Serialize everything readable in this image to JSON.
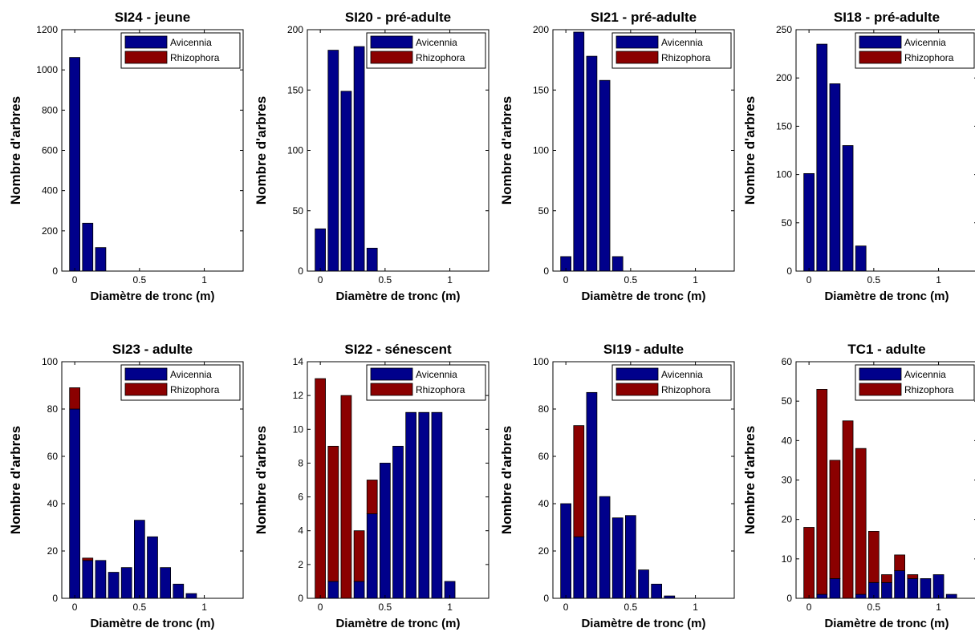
{
  "colors": {
    "avicennia": "#00008b",
    "rhizophora": "#8b0000"
  },
  "chart_data": [
    {
      "type": "bar",
      "title": "SI24 - jeune",
      "xlabel": "Diamètre de tronc (m)",
      "ylabel": "Nombre d'arbres",
      "ylim": [
        0,
        1200
      ],
      "yticks": [
        0,
        200,
        400,
        600,
        800,
        1000,
        1200
      ],
      "xlim": [
        -0.1,
        1.3
      ],
      "xticks": [
        0,
        0.5,
        1
      ],
      "xtick_labels": [
        "0",
        "0.5",
        "1"
      ],
      "x": [
        0,
        0.1,
        0.2
      ],
      "series": [
        {
          "name": "Avicennia",
          "values": [
            1062,
            238,
            117
          ]
        },
        {
          "name": "Rhizophora",
          "values": [
            0,
            0,
            0
          ]
        }
      ]
    },
    {
      "type": "bar",
      "title": "SI20 - pré-adulte",
      "xlabel": "Diamètre de tronc (m)",
      "ylabel": "Nombre d'arbres",
      "ylim": [
        0,
        200
      ],
      "yticks": [
        0,
        50,
        100,
        150,
        200
      ],
      "xlim": [
        -0.1,
        1.3
      ],
      "xticks": [
        0,
        0.5,
        1
      ],
      "xtick_labels": [
        "0",
        "0.5",
        "1"
      ],
      "x": [
        0,
        0.1,
        0.2,
        0.3,
        0.4
      ],
      "series": [
        {
          "name": "Avicennia",
          "values": [
            35,
            183,
            149,
            186,
            19
          ]
        },
        {
          "name": "Rhizophora",
          "values": [
            0,
            0,
            0,
            0,
            0
          ]
        }
      ]
    },
    {
      "type": "bar",
      "title": "SI21 - pré-adulte",
      "xlabel": "Diamètre de tronc (m)",
      "ylabel": "Nombre d'arbres",
      "ylim": [
        0,
        200
      ],
      "yticks": [
        0,
        50,
        100,
        150,
        200
      ],
      "xlim": [
        -0.1,
        1.3
      ],
      "xticks": [
        0,
        0.5,
        1
      ],
      "xtick_labels": [
        "0",
        "0.5",
        "1"
      ],
      "x": [
        0,
        0.1,
        0.2,
        0.3,
        0.4
      ],
      "series": [
        {
          "name": "Avicennia",
          "values": [
            12,
            198,
            178,
            158,
            12
          ]
        },
        {
          "name": "Rhizophora",
          "values": [
            0,
            0,
            0,
            0,
            0
          ]
        }
      ]
    },
    {
      "type": "bar",
      "title": "SI18 - pré-adulte",
      "xlabel": "Diamètre de tronc (m)",
      "ylabel": "Nombre d'arbres",
      "ylim": [
        0,
        250
      ],
      "yticks": [
        0,
        50,
        100,
        150,
        200,
        250
      ],
      "xlim": [
        -0.1,
        1.3
      ],
      "xticks": [
        0,
        0.5,
        1
      ],
      "xtick_labels": [
        "0",
        "0.5",
        "1"
      ],
      "x": [
        0,
        0.1,
        0.2,
        0.3,
        0.4
      ],
      "series": [
        {
          "name": "Avicennia",
          "values": [
            101,
            235,
            194,
            130,
            26
          ]
        },
        {
          "name": "Rhizophora",
          "values": [
            0,
            0,
            0,
            0,
            0
          ]
        }
      ]
    },
    {
      "type": "bar",
      "title": "SI23 - adulte",
      "xlabel": "Diamètre de tronc (m)",
      "ylabel": "Nombre d'arbres",
      "ylim": [
        0,
        100
      ],
      "yticks": [
        0,
        20,
        40,
        60,
        80,
        100
      ],
      "xlim": [
        -0.1,
        1.3
      ],
      "xticks": [
        0,
        0.5,
        1
      ],
      "xtick_labels": [
        "0",
        "0.5",
        "1"
      ],
      "x": [
        0,
        0.1,
        0.2,
        0.3,
        0.4,
        0.5,
        0.6,
        0.7,
        0.8,
        0.9
      ],
      "series": [
        {
          "name": "Avicennia",
          "values": [
            80,
            16,
            16,
            11,
            13,
            33,
            26,
            13,
            6,
            2
          ]
        },
        {
          "name": "Rhizophora",
          "values": [
            9,
            1,
            0,
            0,
            0,
            0,
            0,
            0,
            0,
            0
          ]
        }
      ]
    },
    {
      "type": "bar",
      "title": "SI22 - sénescent",
      "xlabel": "Diamètre de tronc (m)",
      "ylabel": "Nombre d'arbres",
      "ylim": [
        0,
        14
      ],
      "yticks": [
        0,
        2,
        4,
        6,
        8,
        10,
        12,
        14
      ],
      "xlim": [
        -0.1,
        1.3
      ],
      "xticks": [
        0,
        0.5,
        1
      ],
      "xtick_labels": [
        "0",
        "0.5",
        "1"
      ],
      "x": [
        0,
        0.1,
        0.2,
        0.3,
        0.4,
        0.5,
        0.6,
        0.7,
        0.8,
        0.9,
        1.0
      ],
      "series": [
        {
          "name": "Avicennia",
          "values": [
            0,
            1,
            0,
            1,
            5,
            8,
            9,
            11,
            11,
            11,
            1
          ]
        },
        {
          "name": "Rhizophora",
          "values": [
            13,
            8,
            12,
            3,
            2,
            0,
            0,
            0,
            0,
            0,
            0
          ]
        }
      ]
    },
    {
      "type": "bar",
      "title": "SI19 - adulte",
      "xlabel": "Diamètre de tronc (m)",
      "ylabel": "Nombre d'arbres",
      "ylim": [
        0,
        100
      ],
      "yticks": [
        0,
        20,
        40,
        60,
        80,
        100
      ],
      "xlim": [
        -0.1,
        1.3
      ],
      "xticks": [
        0,
        0.5,
        1
      ],
      "xtick_labels": [
        "0",
        "0.5",
        "1"
      ],
      "x": [
        0,
        0.1,
        0.2,
        0.3,
        0.4,
        0.5,
        0.6,
        0.7,
        0.8
      ],
      "series": [
        {
          "name": "Avicennia",
          "values": [
            40,
            26,
            87,
            43,
            34,
            35,
            12,
            6,
            1
          ]
        },
        {
          "name": "Rhizophora",
          "values": [
            0,
            47,
            0,
            0,
            0,
            0,
            0,
            0,
            0
          ]
        }
      ]
    },
    {
      "type": "bar",
      "title": "TC1 - adulte",
      "xlabel": "Diamètre de tronc (m)",
      "ylabel": "Nombre d'arbres",
      "ylim": [
        0,
        60
      ],
      "yticks": [
        0,
        10,
        20,
        30,
        40,
        50,
        60
      ],
      "xlim": [
        -0.1,
        1.3
      ],
      "xticks": [
        0,
        0.5,
        1
      ],
      "xtick_labels": [
        "0",
        "0.5",
        "1"
      ],
      "x": [
        0,
        0.1,
        0.2,
        0.3,
        0.4,
        0.5,
        0.6,
        0.7,
        0.8,
        0.9,
        1.0,
        1.1
      ],
      "series": [
        {
          "name": "Avicennia",
          "values": [
            0,
            1,
            5,
            0,
            1,
            4,
            4,
            7,
            5,
            5,
            6,
            1
          ]
        },
        {
          "name": "Rhizophora",
          "values": [
            18,
            52,
            30,
            45,
            37,
            13,
            2,
            4,
            1,
            0,
            0,
            0
          ]
        }
      ]
    }
  ]
}
